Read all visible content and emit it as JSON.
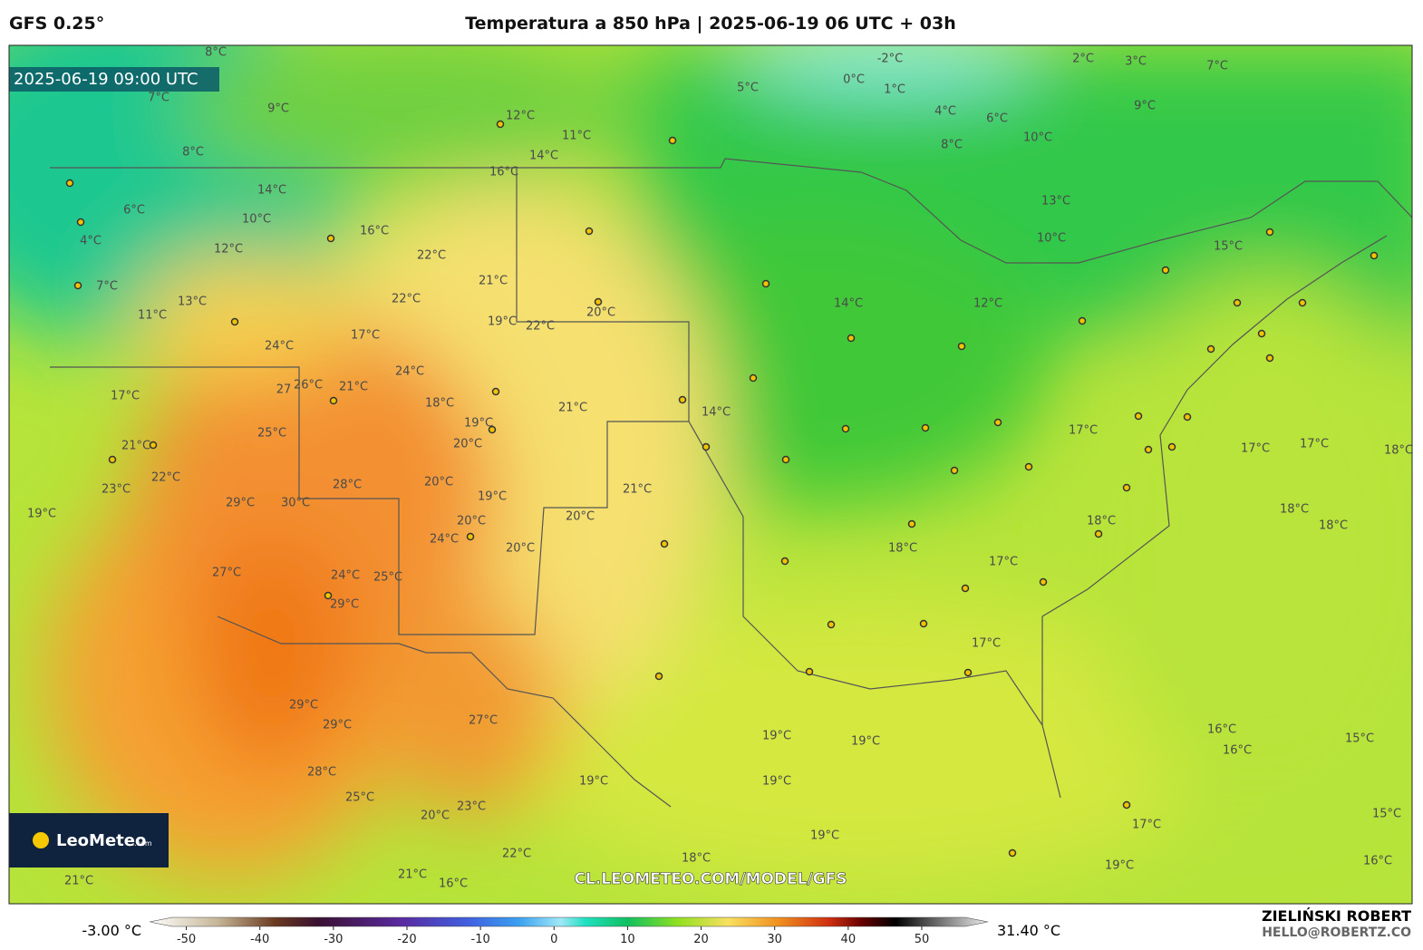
{
  "header": {
    "model": "GFS 0.25°",
    "title": "Temperatura a 850 hPa | 2025-06-19 06 UTC + 03h"
  },
  "map": {
    "valid_time": "2025-06-19 09:00 UTC",
    "watermark": "CL.LEOMETEO.COM/MODEL/GFS",
    "logo": "LeoMeteo",
    "logo_suffix": ".com",
    "contour_labels": [
      "8°C",
      "-2°C",
      "0°C",
      "1°C",
      "2°C",
      "3°C",
      "7°C",
      "7°C",
      "9°C",
      "5°C",
      "12°C",
      "11°C",
      "14°C",
      "4°C",
      "6°C",
      "8°C",
      "9°C",
      "10°C",
      "8°C",
      "16°C",
      "14°C",
      "6°C",
      "10°C",
      "4°C",
      "16°C",
      "13°C",
      "10°C",
      "15°C",
      "12°C",
      "22°C",
      "21°C",
      "7°C",
      "13°C",
      "11°C",
      "14°C",
      "12°C",
      "22°C",
      "19°C",
      "22°C",
      "20°C",
      "17°C",
      "24°C",
      "24°C",
      "21°C",
      "17°C",
      "27",
      "26°C",
      "21°C",
      "18°C",
      "19°C",
      "14°C",
      "25°C",
      "17°C",
      "21°C",
      "20°C",
      "22°C",
      "23°C",
      "28°C",
      "21°C",
      "29°C",
      "30°C",
      "19°C",
      "20°C",
      "17°C",
      "17°C",
      "18°C",
      "19°C",
      "20°C",
      "18°C",
      "18°C",
      "20°C",
      "24°C",
      "18°C",
      "20°C",
      "18°C",
      "17°C",
      "24°C",
      "25°C",
      "27°C",
      "29°C",
      "17°C",
      "27°C",
      "29°C",
      "29°C",
      "19°C",
      "19°C",
      "16°C",
      "16°C",
      "15°C",
      "19°C",
      "19°C",
      "28°C",
      "25°C",
      "23°C",
      "20°C",
      "19°C",
      "17°C",
      "15°C",
      "18°C",
      "22°C",
      "19°C",
      "16°C",
      "21°C",
      "21°C",
      "16°C"
    ]
  },
  "colorbar": {
    "min_label": "-3.00 °C",
    "max_label": "31.40 °C",
    "lim": [
      -55,
      59
    ],
    "ticks": [
      -50,
      -40,
      -30,
      -20,
      -10,
      0,
      10,
      20,
      30,
      40,
      50
    ]
  },
  "footer": {
    "author": "ZIELIŃSKI ROBERT",
    "email": "HELLO@ROBERTZ.CO"
  }
}
